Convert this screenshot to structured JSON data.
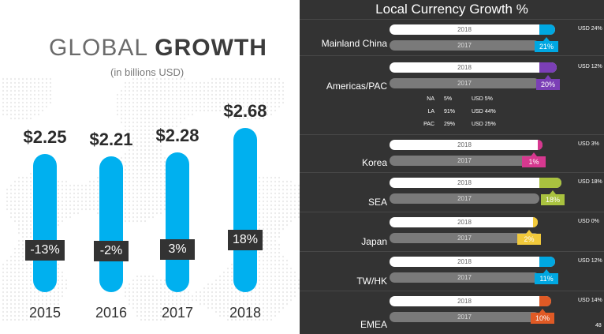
{
  "left": {
    "title_light": "GLOBAL",
    "title_bold": "GROWTH",
    "subtitle": "(in billions USD)"
  },
  "right": {
    "title": "Local Currency Growth %",
    "page_number": "48",
    "americas_breakdown": [
      {
        "region": "NA",
        "pct": "5%",
        "usd": "USD 5%"
      },
      {
        "region": "LA",
        "pct": "91%",
        "usd": "USD 44%"
      },
      {
        "region": "PAC",
        "pct": "29%",
        "usd": "USD 25%"
      }
    ]
  },
  "colors": {
    "global_bar": "#00b0ef",
    "badge_dark": "#333333",
    "panel_bg": "#333333",
    "track_2018": "#ffffff",
    "track_2017": "#7a7a7a"
  },
  "chart_data": [
    {
      "type": "bar",
      "title": "GLOBAL GROWTH",
      "subtitle": "(in billions USD)",
      "categories": [
        "2015",
        "2016",
        "2017",
        "2018"
      ],
      "values": [
        2.25,
        2.21,
        2.28,
        2.68
      ],
      "value_labels": [
        "$2.25",
        "$2.21",
        "$2.28",
        "$2.68"
      ],
      "growth_labels": [
        "-13%",
        "-2%",
        "3%",
        "18%"
      ],
      "ylim": [
        0,
        2.68
      ],
      "grid": false
    },
    {
      "type": "bar",
      "title": "Local Currency Growth %",
      "series_labels": [
        "2018",
        "2017"
      ],
      "categories": [
        {
          "label": "Mainland China",
          "growth": 21,
          "growth_label": "21%",
          "usd": "USD 24%",
          "color": "#00a7e1"
        },
        {
          "label": "Americas/PAC",
          "growth": 20,
          "growth_label": "20%",
          "usd": "USD 12%",
          "color": "#7b3fb6"
        },
        {
          "label": "Korea",
          "growth": 1,
          "growth_label": "1%",
          "usd": "USD 3%",
          "color": "#d6388f"
        },
        {
          "label": "SEA",
          "growth": 18,
          "growth_label": "18%",
          "usd": "USD 18%",
          "color": "#a9c23f"
        },
        {
          "label": "Japan",
          "growth": 2,
          "growth_label": "2%",
          "usd": "USD 0%",
          "color": "#f1c93b"
        },
        {
          "label": "TW/HK",
          "growth": 11,
          "growth_label": "11%",
          "usd": "USD 12%",
          "color": "#00a7e1"
        },
        {
          "label": "EMEA",
          "growth": 10,
          "growth_label": "10%",
          "usd": "USD 14%",
          "color": "#e05a25"
        }
      ],
      "grid": false
    }
  ]
}
